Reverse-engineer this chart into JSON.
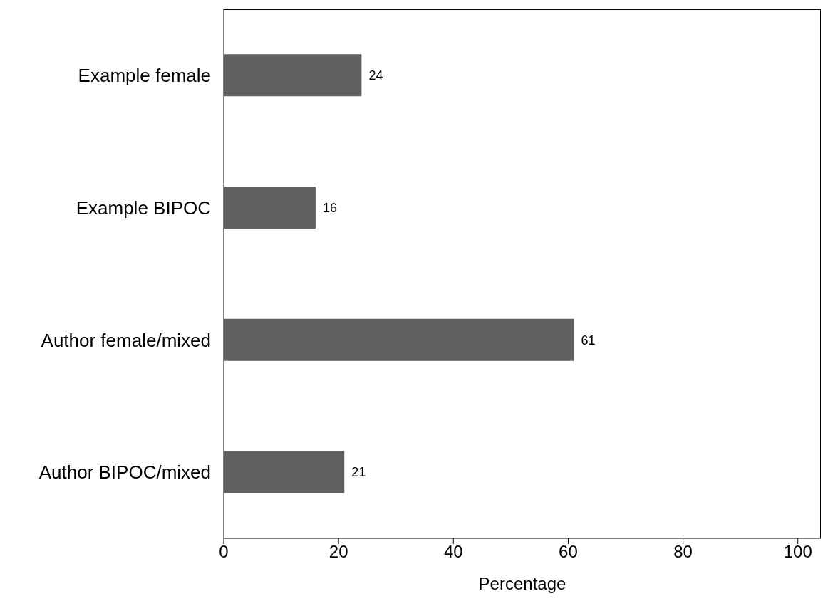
{
  "chart_data": {
    "type": "bar",
    "orientation": "horizontal",
    "categories": [
      "Example female",
      "Example BIPOC",
      "Author female/mixed",
      "Author BIPOC/mixed"
    ],
    "values": [
      24,
      16,
      61,
      21
    ],
    "color": "#5f6161",
    "xlabel": "Percentage",
    "xlim": [
      0,
      104
    ],
    "xticks": [
      0,
      20,
      40,
      60,
      80,
      100
    ],
    "grid": false,
    "data_labels": true
  }
}
